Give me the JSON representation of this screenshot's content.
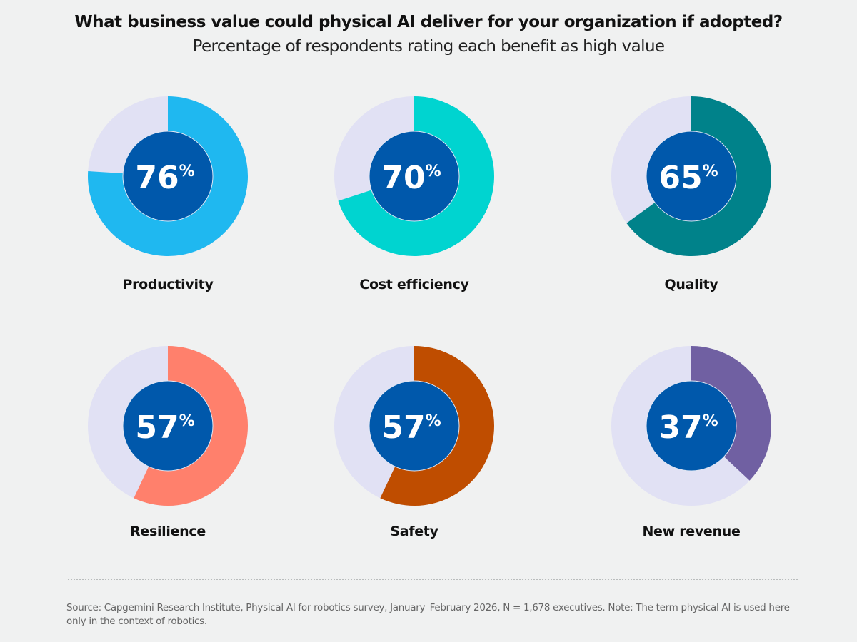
{
  "chart_data": {
    "type": "pie",
    "subtype": "donut-grid",
    "title": "What business value could physical AI deliver for your organization if adopted?",
    "subtitle": "Percentage of respondents rating each benefit as high value",
    "unit": "%",
    "items": [
      {
        "label": "Productivity",
        "value": 76,
        "color": "#1fb8f0"
      },
      {
        "label": "Cost efficiency",
        "value": 70,
        "color": "#00d4d0"
      },
      {
        "label": "Quality",
        "value": 65,
        "color": "#00828a"
      },
      {
        "label": "Resilience",
        "value": 57,
        "color": "#ff806c"
      },
      {
        "label": "Safety",
        "value": 57,
        "color": "#bf4d00"
      },
      {
        "label": "New revenue",
        "value": 37,
        "color": "#7060a2"
      }
    ],
    "remainder_color": "#e1e1f4",
    "center_color": "#0058ab",
    "layout": "2 rows x 3 columns"
  },
  "footer": {
    "source": "Source: Capgemini Research Institute, Physical AI for robotics survey, January–February 2026, N = 1,678 executives. Note: The term physical AI is used here only in the context of robotics."
  }
}
